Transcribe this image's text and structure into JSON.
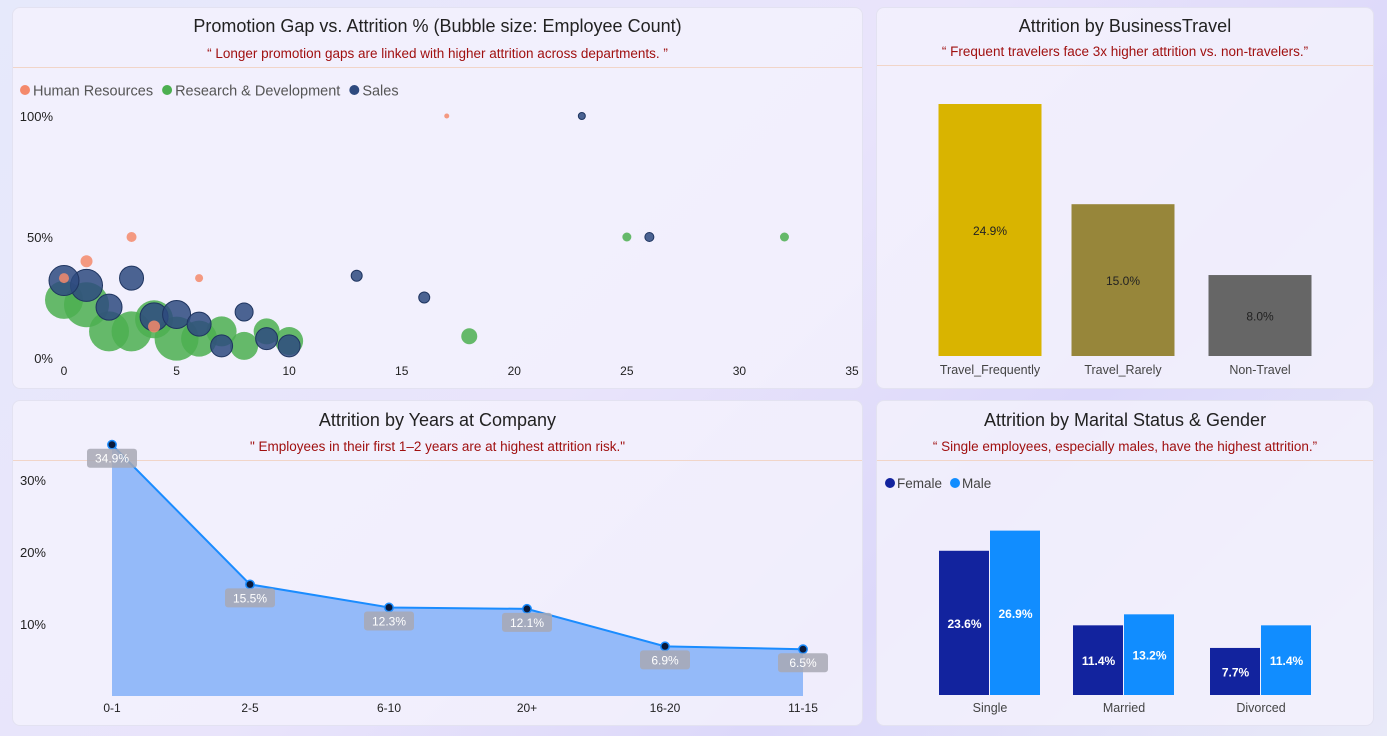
{
  "colors": {
    "hr": "#f4896b",
    "rnd": "#4caf50",
    "sales": "#2e4a7f",
    "travel_frequently": "#d9b400",
    "travel_rarely": "#97863a",
    "non_travel": "#666666",
    "female": "#12239e",
    "male": "#118dff",
    "area_fill": "#8ab4f8",
    "line": "#1a8cff",
    "subtitle": "#a01010"
  },
  "panels": {
    "promotion": {
      "title": "Promotion Gap vs. Attrition % (Bubble size: Employee Count)",
      "subtitle": "“ Longer promotion gaps are linked with higher attrition across departments. ”"
    },
    "travel": {
      "title": "Attrition by BusinessTravel",
      "subtitle": "“ Frequent travelers face 3x higher attrition vs. non-travelers.”"
    },
    "years": {
      "title": "Attrition by Years at Company",
      "subtitle": "\" Employees in their first 1–2 years are at highest attrition risk.\""
    },
    "marital": {
      "title": "Attrition by Marital Status & Gender",
      "subtitle": "“ Single employees, especially males, have the highest attrition.”"
    }
  },
  "chart_data": [
    {
      "type": "scatter",
      "title": "Promotion Gap vs. Attrition % (Bubble size: Employee Count)",
      "x_ticks": [
        "0",
        "5",
        "10",
        "15",
        "20",
        "25",
        "30",
        "35"
      ],
      "y_ticks": [
        "0%",
        "50%",
        "100%"
      ],
      "xlim": [
        0,
        35
      ],
      "ylim": [
        0,
        100
      ],
      "legend": "top-left",
      "series": [
        {
          "name": "Human Resources",
          "color_key": "hr",
          "points": [
            {
              "x": 0,
              "y": 33,
              "size": 10
            },
            {
              "x": 1,
              "y": 40,
              "size": 12
            },
            {
              "x": 3,
              "y": 50,
              "size": 10
            },
            {
              "x": 4,
              "y": 13,
              "size": 12
            },
            {
              "x": 6,
              "y": 33,
              "size": 8
            },
            {
              "x": 17,
              "y": 100,
              "size": 5
            }
          ]
        },
        {
          "name": "Research & Development",
          "color_key": "rnd",
          "points": [
            {
              "x": 0,
              "y": 24,
              "size": 38
            },
            {
              "x": 1,
              "y": 22,
              "size": 45
            },
            {
              "x": 2,
              "y": 11,
              "size": 40
            },
            {
              "x": 3,
              "y": 11,
              "size": 40
            },
            {
              "x": 4,
              "y": 16,
              "size": 38
            },
            {
              "x": 5,
              "y": 8,
              "size": 44
            },
            {
              "x": 6,
              "y": 8,
              "size": 36
            },
            {
              "x": 7,
              "y": 11,
              "size": 30
            },
            {
              "x": 8,
              "y": 5,
              "size": 28
            },
            {
              "x": 9,
              "y": 11,
              "size": 26
            },
            {
              "x": 10,
              "y": 7,
              "size": 28
            },
            {
              "x": 18,
              "y": 9,
              "size": 16
            },
            {
              "x": 25,
              "y": 50,
              "size": 9
            },
            {
              "x": 32,
              "y": 50,
              "size": 9
            }
          ]
        },
        {
          "name": "Sales",
          "color_key": "sales",
          "points": [
            {
              "x": 0,
              "y": 32,
              "size": 30
            },
            {
              "x": 1,
              "y": 30,
              "size": 32
            },
            {
              "x": 2,
              "y": 21,
              "size": 26
            },
            {
              "x": 3,
              "y": 33,
              "size": 24
            },
            {
              "x": 4,
              "y": 17,
              "size": 28
            },
            {
              "x": 5,
              "y": 18,
              "size": 28
            },
            {
              "x": 6,
              "y": 14,
              "size": 24
            },
            {
              "x": 7,
              "y": 5,
              "size": 22
            },
            {
              "x": 8,
              "y": 19,
              "size": 18
            },
            {
              "x": 9,
              "y": 8,
              "size": 22
            },
            {
              "x": 10,
              "y": 5,
              "size": 22
            },
            {
              "x": 13,
              "y": 34,
              "size": 11
            },
            {
              "x": 16,
              "y": 25,
              "size": 11
            },
            {
              "x": 23,
              "y": 100,
              "size": 7
            },
            {
              "x": 26,
              "y": 50,
              "size": 9
            }
          ]
        }
      ]
    },
    {
      "type": "bar",
      "title": "Attrition by BusinessTravel",
      "categories": [
        "Travel_Frequently",
        "Travel_Rarely",
        "Non-Travel"
      ],
      "values": [
        24.9,
        15.0,
        8.0
      ],
      "labels": [
        "24.9%",
        "15.0%",
        "8.0%"
      ],
      "color_keys": [
        "travel_frequently",
        "travel_rarely",
        "non_travel"
      ],
      "ylim": [
        0,
        25
      ]
    },
    {
      "type": "area",
      "title": "Attrition by Years at Company",
      "categories": [
        "0-1",
        "2-5",
        "6-10",
        "20+",
        "16-20",
        "11-15"
      ],
      "values": [
        34.9,
        15.5,
        12.3,
        12.1,
        6.9,
        6.5
      ],
      "labels": [
        "34.9%",
        "15.5%",
        "12.3%",
        "12.1%",
        "6.9%",
        "6.5%"
      ],
      "y_ticks": [
        "10%",
        "20%",
        "30%"
      ],
      "ylim": [
        0,
        35
      ]
    },
    {
      "type": "bar",
      "title": "Attrition by Marital Status & Gender",
      "categories": [
        "Single",
        "Married",
        "Divorced"
      ],
      "legend": "top-left",
      "series": [
        {
          "name": "Female",
          "color_key": "female",
          "values": [
            23.6,
            11.4,
            7.7
          ],
          "labels": [
            "23.6%",
            "11.4%",
            "7.7%"
          ]
        },
        {
          "name": "Male",
          "color_key": "male",
          "values": [
            26.9,
            13.2,
            11.4
          ],
          "labels": [
            "26.9%",
            "13.2%",
            "11.4%"
          ]
        }
      ],
      "ylim": [
        0,
        27
      ]
    }
  ]
}
